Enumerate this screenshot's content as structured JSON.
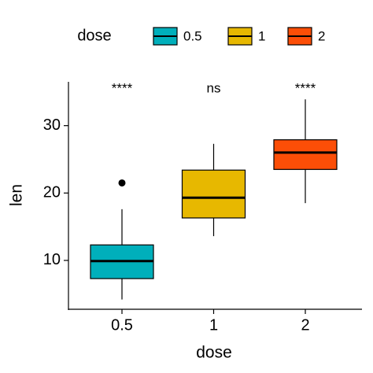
{
  "chart_data": {
    "type": "box",
    "x_label": "dose",
    "y_label": "len",
    "legend_title": "dose",
    "legend_position": "top",
    "categories": [
      "0.5",
      "1",
      "2"
    ],
    "series": [
      {
        "name": "0.5",
        "color": "#00AFBB",
        "whisker_low": 4.2,
        "q1": 7.3,
        "median": 9.9,
        "q3": 12.3,
        "whisker_high": 17.6,
        "outliers": [
          21.5
        ]
      },
      {
        "name": "1",
        "color": "#E7B800",
        "whisker_low": 13.6,
        "q1": 16.3,
        "median": 19.3,
        "q3": 23.4,
        "whisker_high": 27.3,
        "outliers": []
      },
      {
        "name": "2",
        "color": "#FC4E07",
        "whisker_low": 18.5,
        "q1": 23.5,
        "median": 26.0,
        "q3": 27.9,
        "whisker_high": 33.9,
        "outliers": []
      }
    ],
    "annotations": [
      "****",
      "ns",
      "****"
    ],
    "ylim": [
      2.75,
      36.5
    ],
    "yticks": [
      10,
      20,
      30
    ]
  }
}
